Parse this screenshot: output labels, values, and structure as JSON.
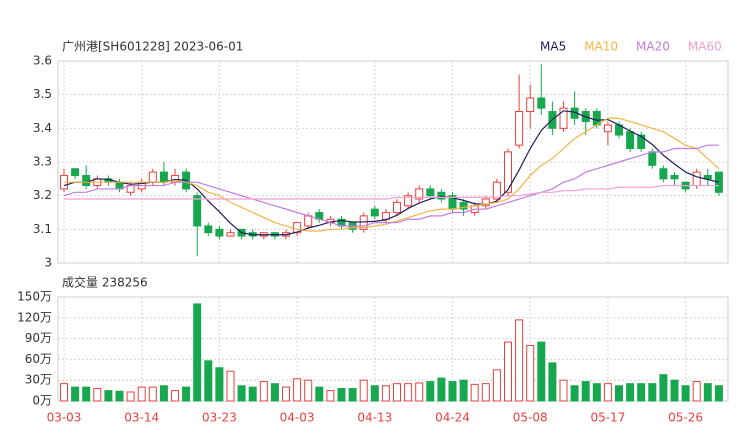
{
  "chart_data": [
    {
      "type": "candlestick",
      "title": "广州港[SH601228] 2023-06-01",
      "ylim": [
        3,
        3.6
      ],
      "yticks": [
        3,
        3.1,
        3.2,
        3.3,
        3.4,
        3.5,
        3.6
      ],
      "grid": true,
      "legend": "top-right",
      "up_color": "#e8413e",
      "down_color": "#17a84f",
      "open": [
        3.22,
        3.28,
        3.26,
        3.23,
        3.25,
        3.24,
        3.21,
        3.22,
        3.24,
        3.27,
        3.24,
        3.27,
        3.2,
        3.11,
        3.1,
        3.08,
        3.1,
        3.09,
        3.08,
        3.09,
        3.08,
        3.09,
        3.11,
        3.15,
        3.12,
        3.13,
        3.12,
        3.1,
        3.16,
        3.13,
        3.15,
        3.17,
        3.19,
        3.22,
        3.21,
        3.2,
        3.18,
        3.15,
        3.17,
        3.19,
        3.21,
        3.35,
        3.45,
        3.49,
        3.45,
        3.4,
        3.46,
        3.45,
        3.45,
        3.39,
        3.41,
        3.39,
        3.38,
        3.33,
        3.28,
        3.26,
        3.24,
        3.23,
        3.26,
        3.27
      ],
      "high": [
        3.28,
        3.28,
        3.29,
        3.26,
        3.26,
        3.25,
        3.24,
        3.25,
        3.28,
        3.3,
        3.28,
        3.28,
        3.21,
        3.12,
        3.11,
        3.1,
        3.1,
        3.1,
        3.09,
        3.09,
        3.1,
        3.12,
        3.15,
        3.16,
        3.14,
        3.14,
        3.12,
        3.15,
        3.17,
        3.16,
        3.19,
        3.21,
        3.23,
        3.23,
        3.22,
        3.21,
        3.19,
        3.18,
        3.2,
        3.25,
        3.34,
        3.56,
        3.53,
        3.59,
        3.48,
        3.48,
        3.51,
        3.46,
        3.46,
        3.42,
        3.42,
        3.4,
        3.39,
        3.34,
        3.29,
        3.27,
        3.24,
        3.28,
        3.28,
        3.27
      ],
      "low": [
        3.21,
        3.25,
        3.22,
        3.22,
        3.23,
        3.21,
        3.2,
        3.21,
        3.23,
        3.23,
        3.23,
        3.21,
        3.02,
        3.08,
        3.07,
        3.08,
        3.07,
        3.07,
        3.07,
        3.07,
        3.07,
        3.08,
        3.1,
        3.12,
        3.11,
        3.1,
        3.09,
        3.09,
        3.13,
        3.12,
        3.14,
        3.16,
        3.18,
        3.19,
        3.18,
        3.15,
        3.14,
        3.14,
        3.16,
        3.18,
        3.2,
        3.34,
        3.4,
        3.44,
        3.38,
        3.39,
        3.41,
        3.38,
        3.4,
        3.35,
        3.37,
        3.33,
        3.33,
        3.28,
        3.24,
        3.23,
        3.21,
        3.22,
        3.23,
        3.2
      ],
      "close": [
        3.26,
        3.26,
        3.23,
        3.25,
        3.24,
        3.22,
        3.23,
        3.24,
        3.27,
        3.24,
        3.26,
        3.22,
        3.11,
        3.09,
        3.08,
        3.09,
        3.08,
        3.08,
        3.09,
        3.08,
        3.09,
        3.12,
        3.14,
        3.13,
        3.13,
        3.11,
        3.1,
        3.14,
        3.14,
        3.15,
        3.18,
        3.2,
        3.22,
        3.2,
        3.19,
        3.16,
        3.16,
        3.17,
        3.19,
        3.24,
        3.33,
        3.45,
        3.49,
        3.46,
        3.4,
        3.46,
        3.43,
        3.42,
        3.41,
        3.41,
        3.38,
        3.34,
        3.34,
        3.29,
        3.25,
        3.25,
        3.22,
        3.27,
        3.25,
        3.21
      ],
      "series": [
        {
          "name": "MA5",
          "color": "#1f1f5c",
          "values": [
            3.23,
            3.24,
            3.24,
            3.25,
            3.248,
            3.24,
            3.234,
            3.236,
            3.24,
            3.24,
            3.248,
            3.246,
            3.22,
            3.184,
            3.152,
            3.118,
            3.09,
            3.084,
            3.084,
            3.084,
            3.084,
            3.092,
            3.104,
            3.112,
            3.122,
            3.126,
            3.122,
            3.122,
            3.124,
            3.128,
            3.142,
            3.162,
            3.178,
            3.19,
            3.198,
            3.194,
            3.186,
            3.176,
            3.174,
            3.184,
            3.218,
            3.276,
            3.34,
            3.394,
            3.426,
            3.452,
            3.448,
            3.434,
            3.424,
            3.426,
            3.41,
            3.392,
            3.376,
            3.352,
            3.32,
            3.294,
            3.27,
            3.256,
            3.248,
            3.24
          ]
        },
        {
          "name": "MA10",
          "color": "#f2b445",
          "values": [
            3.24,
            3.24,
            3.24,
            3.24,
            3.24,
            3.24,
            3.24,
            3.24,
            3.24,
            3.24,
            3.245,
            3.24,
            3.23,
            3.21,
            3.2,
            3.18,
            3.165,
            3.15,
            3.135,
            3.12,
            3.11,
            3.1,
            3.095,
            3.095,
            3.1,
            3.1,
            3.105,
            3.105,
            3.11,
            3.115,
            3.125,
            3.135,
            3.145,
            3.155,
            3.16,
            3.16,
            3.165,
            3.17,
            3.175,
            3.18,
            3.19,
            3.22,
            3.26,
            3.29,
            3.31,
            3.34,
            3.37,
            3.39,
            3.41,
            3.43,
            3.43,
            3.42,
            3.41,
            3.4,
            3.39,
            3.37,
            3.35,
            3.34,
            3.31,
            3.28
          ]
        },
        {
          "name": "MA20",
          "color": "#c17ee0",
          "values": [
            3.2,
            3.21,
            3.21,
            3.22,
            3.22,
            3.22,
            3.23,
            3.23,
            3.23,
            3.23,
            3.24,
            3.24,
            3.24,
            3.23,
            3.22,
            3.21,
            3.2,
            3.19,
            3.18,
            3.17,
            3.16,
            3.15,
            3.14,
            3.13,
            3.12,
            3.11,
            3.11,
            3.11,
            3.12,
            3.12,
            3.12,
            3.13,
            3.13,
            3.14,
            3.14,
            3.15,
            3.15,
            3.16,
            3.16,
            3.17,
            3.18,
            3.19,
            3.2,
            3.21,
            3.22,
            3.24,
            3.25,
            3.27,
            3.28,
            3.29,
            3.3,
            3.31,
            3.32,
            3.33,
            3.33,
            3.34,
            3.34,
            3.34,
            3.35,
            3.35
          ]
        },
        {
          "name": "MA60",
          "color": "#f3a0d2",
          "values": [
            3.19,
            3.19,
            3.19,
            3.19,
            3.19,
            3.19,
            3.19,
            3.19,
            3.19,
            3.19,
            3.19,
            3.19,
            3.19,
            3.19,
            3.19,
            3.19,
            3.19,
            3.19,
            3.19,
            3.19,
            3.19,
            3.19,
            3.19,
            3.19,
            3.19,
            3.19,
            3.19,
            3.19,
            3.19,
            3.19,
            3.195,
            3.195,
            3.195,
            3.195,
            3.195,
            3.195,
            3.195,
            3.195,
            3.195,
            3.195,
            3.2,
            3.2,
            3.205,
            3.21,
            3.21,
            3.215,
            3.215,
            3.22,
            3.22,
            3.22,
            3.225,
            3.225,
            3.225,
            3.225,
            3.23,
            3.23,
            3.23,
            3.23,
            3.23,
            3.23
          ]
        }
      ]
    },
    {
      "type": "bar",
      "title": "成交量 238256",
      "categories": [
        "03-03",
        null,
        null,
        null,
        null,
        null,
        null,
        "03-14",
        null,
        null,
        null,
        null,
        null,
        null,
        "03-23",
        null,
        null,
        null,
        null,
        null,
        null,
        "04-03",
        null,
        null,
        null,
        null,
        null,
        null,
        "04-13",
        null,
        null,
        null,
        null,
        null,
        null,
        "04-24",
        null,
        null,
        null,
        null,
        null,
        null,
        "05-08",
        null,
        null,
        null,
        null,
        null,
        null,
        "05-17",
        null,
        null,
        null,
        null,
        null,
        null,
        "05-26",
        null,
        null,
        null
      ],
      "values": [
        25,
        20,
        20,
        18,
        15,
        14,
        13,
        20,
        20,
        22,
        15,
        20,
        140,
        58,
        48,
        43,
        22,
        20,
        28,
        25,
        20,
        32,
        30,
        20,
        15,
        18,
        18,
        30,
        22,
        22,
        25,
        25,
        26,
        28,
        33,
        28,
        30,
        24,
        25,
        45,
        85,
        117,
        80,
        85,
        55,
        30,
        22,
        28,
        25,
        25,
        22,
        25,
        25,
        25,
        38,
        30,
        22,
        28,
        25,
        22
      ],
      "ylim": [
        0,
        150
      ],
      "yticks": [
        {
          "value": 0,
          "label": "0万"
        },
        {
          "value": 30,
          "label": "30万"
        },
        {
          "value": 60,
          "label": "60万"
        },
        {
          "value": 90,
          "label": "90万"
        },
        {
          "value": 120,
          "label": "120万"
        },
        {
          "value": 150,
          "label": "150万"
        }
      ]
    }
  ]
}
